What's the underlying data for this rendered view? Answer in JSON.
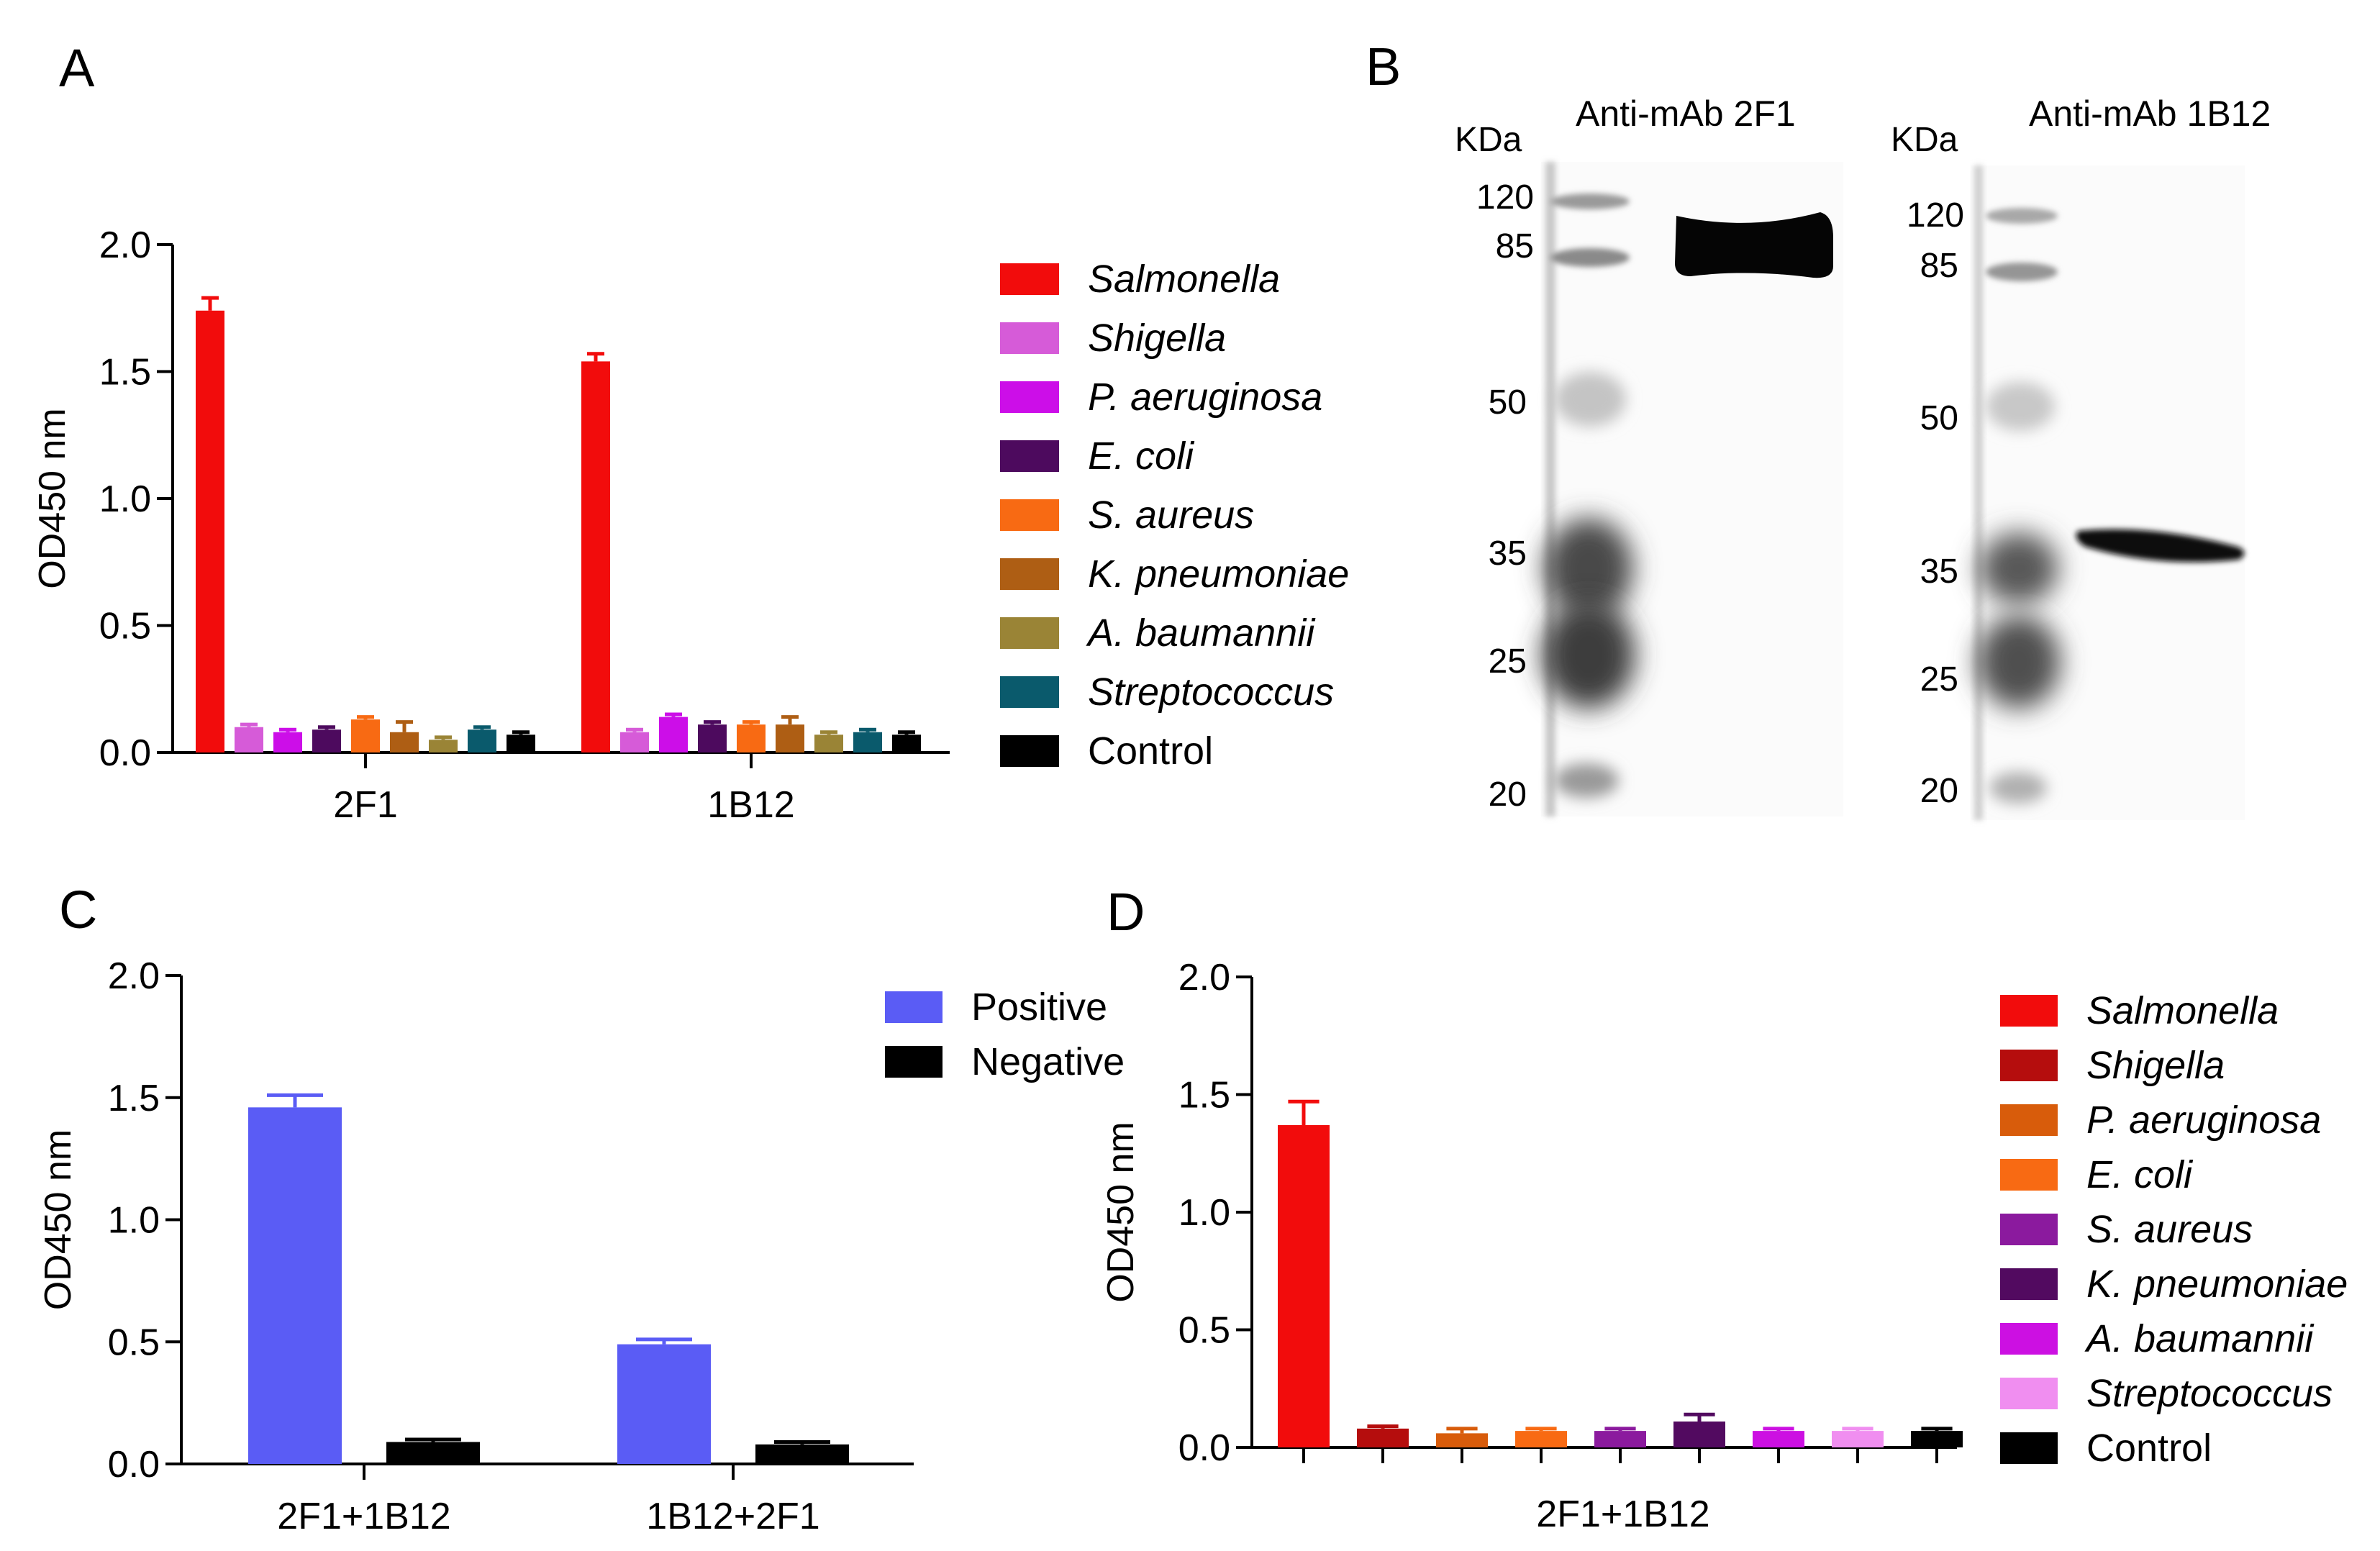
{
  "panels": [
    {
      "id": "A",
      "letter": "A"
    },
    {
      "id": "B",
      "letter": "B"
    },
    {
      "id": "C",
      "letter": "C"
    },
    {
      "id": "D",
      "letter": "D"
    }
  ],
  "chart_data": [
    {
      "panel": "A",
      "type": "bar",
      "title": "",
      "xlabel": "",
      "ylabel": "OD450 nm",
      "ylim": [
        0,
        2.0
      ],
      "yticks": [
        "0.0",
        "0.5",
        "1.0",
        "1.5",
        "2.0"
      ],
      "grid": false,
      "legend_position": "right",
      "categories": [
        "2F1",
        "1B12"
      ],
      "series": [
        {
          "name": "Salmonella",
          "italic": true,
          "color": "#f20c0c",
          "values": [
            1.74,
            1.54
          ],
          "errors": [
            0.05,
            0.03
          ]
        },
        {
          "name": "Shigella",
          "italic": true,
          "color": "#d65bd8",
          "values": [
            0.1,
            0.08
          ],
          "errors": [
            0.01,
            0.01
          ]
        },
        {
          "name": "P. aeruginosa",
          "italic": true,
          "color": "#cc0ee8",
          "values": [
            0.08,
            0.14
          ],
          "errors": [
            0.01,
            0.01
          ]
        },
        {
          "name": "E. coli",
          "italic": true,
          "color": "#4d0a5e",
          "values": [
            0.09,
            0.11
          ],
          "errors": [
            0.01,
            0.01
          ]
        },
        {
          "name": "S. aureus",
          "italic": true,
          "color": "#f86a13",
          "values": [
            0.13,
            0.11
          ],
          "errors": [
            0.01,
            0.01
          ]
        },
        {
          "name": "K. pneumoniae",
          "italic": true,
          "color": "#ae5e14",
          "values": [
            0.08,
            0.11
          ],
          "errors": [
            0.04,
            0.03
          ]
        },
        {
          "name": "A. baumannii",
          "italic": true,
          "color": "#9a8436",
          "values": [
            0.05,
            0.07
          ],
          "errors": [
            0.01,
            0.01
          ]
        },
        {
          "name": "Streptococcus",
          "italic": true,
          "color": "#0a5a6c",
          "values": [
            0.09,
            0.08
          ],
          "errors": [
            0.01,
            0.01
          ]
        },
        {
          "name": "Control",
          "italic": false,
          "color": "#000000",
          "values": [
            0.07,
            0.07
          ],
          "errors": [
            0.01,
            0.01
          ]
        }
      ]
    },
    {
      "panel": "C",
      "type": "bar",
      "title": "",
      "xlabel": "",
      "ylabel": "OD450 nm",
      "ylim": [
        0,
        2.0
      ],
      "yticks": [
        "0.0",
        "0.5",
        "1.0",
        "1.5",
        "2.0"
      ],
      "grid": false,
      "legend_position": "top-right",
      "categories": [
        "2F1+1B12",
        "1B12+2F1"
      ],
      "series": [
        {
          "name": "Positive",
          "italic": false,
          "color": "#5a5cf5",
          "values": [
            1.46,
            0.49
          ],
          "errors": [
            0.05,
            0.02
          ]
        },
        {
          "name": "Negative",
          "italic": false,
          "color": "#000000",
          "values": [
            0.09,
            0.08
          ],
          "errors": [
            0.01,
            0.01
          ]
        }
      ]
    },
    {
      "panel": "D",
      "type": "bar",
      "title": "",
      "xlabel": "2F1+1B12",
      "ylabel": "OD450 nm",
      "ylim": [
        0,
        2.0
      ],
      "yticks": [
        "0.0",
        "0.5",
        "1.0",
        "1.5",
        "2.0"
      ],
      "grid": false,
      "legend_position": "right",
      "categories": [
        "Salmonella",
        "Shigella",
        "P. aeruginosa",
        "E. coli",
        "S. aureus",
        "K. pneumoniae",
        "A. baumannii",
        "Streptococcus",
        "Control"
      ],
      "series": [
        {
          "name": "Salmonella",
          "italic": true,
          "color": "#f20c0c",
          "value": 1.37,
          "error": 0.1
        },
        {
          "name": "Shigella",
          "italic": true,
          "color": "#b50d0d",
          "value": 0.08,
          "error": 0.01
        },
        {
          "name": "P. aeruginosa",
          "italic": true,
          "color": "#d85c0b",
          "value": 0.06,
          "error": 0.02
        },
        {
          "name": "E. coli",
          "italic": true,
          "color": "#f86a13",
          "value": 0.07,
          "error": 0.01
        },
        {
          "name": "S. aureus",
          "italic": true,
          "color": "#8b1a9e",
          "value": 0.07,
          "error": 0.01
        },
        {
          "name": "K. pneumoniae",
          "italic": true,
          "color": "#520a60",
          "value": 0.11,
          "error": 0.03
        },
        {
          "name": "A. baumannii",
          "italic": true,
          "color": "#cc10e2",
          "value": 0.07,
          "error": 0.01
        },
        {
          "name": "Streptococcus",
          "italic": true,
          "color": "#f08ef0",
          "value": 0.07,
          "error": 0.01
        },
        {
          "name": "Control",
          "italic": false,
          "color": "#000000",
          "value": 0.07,
          "error": 0.01
        }
      ]
    }
  ],
  "western_blots": {
    "panel": "B",
    "blots": [
      {
        "title": "Anti-mAb 2F1",
        "unit": "KDa",
        "markers": [
          "120",
          "85",
          "50",
          "35",
          "25",
          "20"
        ],
        "band_kda": "85"
      },
      {
        "title": "Anti-mAb 1B12",
        "unit": "KDa",
        "markers": [
          "120",
          "85",
          "50",
          "35",
          "25",
          "20"
        ],
        "band_kda": "35"
      }
    ]
  }
}
